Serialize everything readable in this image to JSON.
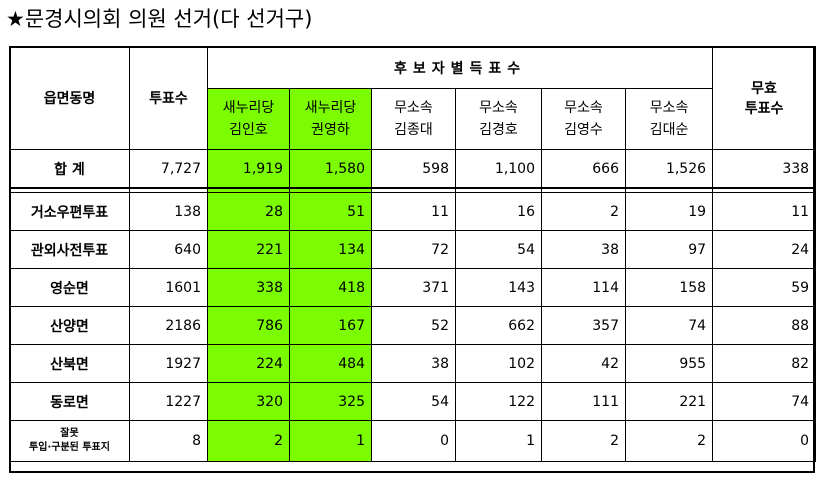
{
  "title": "★문경시의회 의원 선거(다 선거구)",
  "headers": {
    "region": "읍면동명",
    "votes": "투표수",
    "candidates_group": "후보자별득표수",
    "invalid_line1": "무효",
    "invalid_line2": "투표수"
  },
  "candidates": [
    {
      "party": "새누리당",
      "name": "김인호",
      "highlight": true
    },
    {
      "party": "새누리당",
      "name": "권영하",
      "highlight": true
    },
    {
      "party": "무소속",
      "name": "김종대",
      "highlight": false
    },
    {
      "party": "무소속",
      "name": "김경호",
      "highlight": false
    },
    {
      "party": "무소속",
      "name": "김영수",
      "highlight": false
    },
    {
      "party": "무소속",
      "name": "김대순",
      "highlight": false
    }
  ],
  "total": {
    "label": "합 계",
    "votes": "7,727",
    "c": [
      "1,919",
      "1,580",
      "598",
      "1,100",
      "666",
      "1,526"
    ],
    "invalid": "338"
  },
  "rows": [
    {
      "label": "거소우편투표",
      "votes": "138",
      "c": [
        "28",
        "51",
        "11",
        "16",
        "2",
        "19"
      ],
      "invalid": "11"
    },
    {
      "label": "관외사전투표",
      "votes": "640",
      "c": [
        "221",
        "134",
        "72",
        "54",
        "38",
        "97"
      ],
      "invalid": "24"
    },
    {
      "label": "영순면",
      "votes": "1601",
      "c": [
        "338",
        "418",
        "371",
        "143",
        "114",
        "158"
      ],
      "invalid": "59"
    },
    {
      "label": "산양면",
      "votes": "2186",
      "c": [
        "786",
        "167",
        "52",
        "662",
        "357",
        "74"
      ],
      "invalid": "88"
    },
    {
      "label": "산북면",
      "votes": "1927",
      "c": [
        "224",
        "484",
        "38",
        "102",
        "42",
        "955"
      ],
      "invalid": "82"
    },
    {
      "label": "동로면",
      "votes": "1227",
      "c": [
        "320",
        "325",
        "54",
        "122",
        "111",
        "221"
      ],
      "invalid": "74"
    }
  ],
  "last_row": {
    "label_line1": "잘못",
    "label_line2": "투입·구분된 투표지",
    "votes": "8",
    "c": [
      "2",
      "1",
      "0",
      "1",
      "2",
      "2"
    ],
    "invalid": "0"
  },
  "colors": {
    "highlight": "#7CFC00"
  }
}
